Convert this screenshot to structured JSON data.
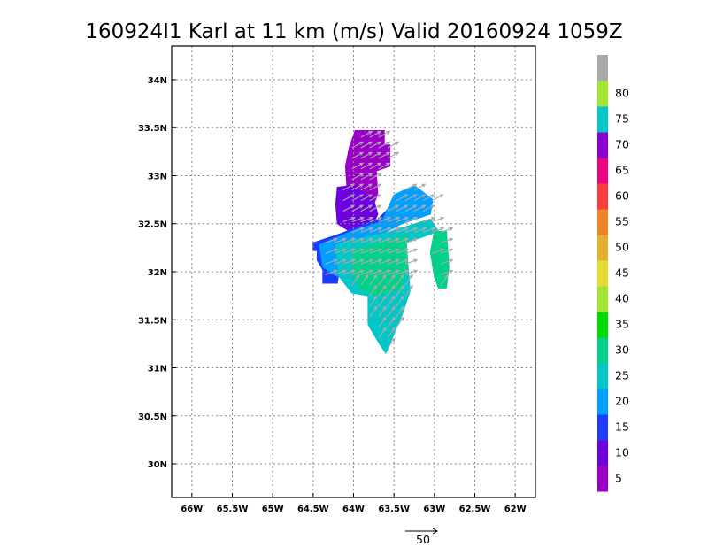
{
  "chart_data": {
    "type": "heatmap",
    "title": "160924I1 Karl at 11 km (m/s) Valid 20160924 1059Z",
    "xlim": [
      -66.25,
      -61.75
    ],
    "ylim": [
      29.65,
      34.35
    ],
    "x_ticks": [
      {
        "value": -66,
        "label": "66W"
      },
      {
        "value": -65.5,
        "label": "65.5W"
      },
      {
        "value": -65,
        "label": "65W"
      },
      {
        "value": -64.5,
        "label": "64.5W"
      },
      {
        "value": -64,
        "label": "64W"
      },
      {
        "value": -63.5,
        "label": "63.5W"
      },
      {
        "value": -63,
        "label": "63W"
      },
      {
        "value": -62.5,
        "label": "62.5W"
      },
      {
        "value": -62,
        "label": "62W"
      }
    ],
    "y_ticks": [
      {
        "value": 30,
        "label": "30N"
      },
      {
        "value": 30.5,
        "label": "30.5N"
      },
      {
        "value": 31,
        "label": "31N"
      },
      {
        "value": 31.5,
        "label": "31.5N"
      },
      {
        "value": 32,
        "label": "32N"
      },
      {
        "value": 32.5,
        "label": "32.5N"
      },
      {
        "value": 33,
        "label": "33N"
      },
      {
        "value": 33.5,
        "label": "33.5N"
      },
      {
        "value": 34,
        "label": "34N"
      }
    ],
    "grid": true,
    "grid_style": "dotted",
    "colorbar": {
      "labels": [
        "5",
        "10",
        "15",
        "20",
        "25",
        "30",
        "35",
        "40",
        "45",
        "50",
        "55",
        "60",
        "65",
        "70",
        "75",
        "80"
      ],
      "colors": [
        "#9a00c8",
        "#6e00e0",
        "#1e3cff",
        "#00a0ff",
        "#00c8c8",
        "#00d28c",
        "#00dc00",
        "#a0e632",
        "#e6dc32",
        "#e6af2d",
        "#f08228",
        "#fa3c3c",
        "#f00082",
        "#8c00d2",
        "#00c8c8",
        "#a0e632",
        "#aaaaaa"
      ]
    },
    "regions": [
      {
        "speed_class": "0-5",
        "color": "#9a00c8",
        "polygon": [
          [
            -63.98,
            33.47
          ],
          [
            -63.62,
            33.47
          ],
          [
            -63.62,
            33.32
          ],
          [
            -63.55,
            33.32
          ],
          [
            -63.55,
            33.1
          ],
          [
            -63.72,
            33.05
          ],
          [
            -63.7,
            32.8
          ],
          [
            -63.78,
            32.65
          ],
          [
            -63.98,
            32.68
          ],
          [
            -64.08,
            32.85
          ],
          [
            -64.1,
            33.1
          ],
          [
            -64.05,
            33.3
          ]
        ]
      },
      {
        "speed_class": "5-10",
        "color": "#6e00e0",
        "polygon": [
          [
            -64.2,
            32.88
          ],
          [
            -64.0,
            32.9
          ],
          [
            -63.75,
            32.75
          ],
          [
            -63.7,
            32.6
          ],
          [
            -63.78,
            32.45
          ],
          [
            -64.05,
            32.42
          ],
          [
            -64.2,
            32.5
          ],
          [
            -64.22,
            32.7
          ]
        ]
      },
      {
        "speed_class": "10-15",
        "color": "#1e3cff",
        "polygon": [
          [
            -64.5,
            32.3
          ],
          [
            -64.15,
            32.4
          ],
          [
            -63.7,
            32.55
          ],
          [
            -63.45,
            32.75
          ],
          [
            -63.3,
            32.72
          ],
          [
            -63.42,
            32.55
          ],
          [
            -63.8,
            32.4
          ],
          [
            -64.15,
            32.18
          ],
          [
            -64.2,
            31.88
          ],
          [
            -64.38,
            31.88
          ],
          [
            -64.38,
            32.02
          ],
          [
            -64.45,
            32.12
          ],
          [
            -64.45,
            32.22
          ],
          [
            -64.5,
            32.22
          ]
        ]
      },
      {
        "speed_class": "15-20",
        "color": "#00a0ff",
        "polygon": [
          [
            -64.42,
            32.28
          ],
          [
            -64.0,
            32.43
          ],
          [
            -63.65,
            32.52
          ],
          [
            -63.5,
            32.8
          ],
          [
            -63.25,
            32.9
          ],
          [
            -63.02,
            32.75
          ],
          [
            -63.05,
            32.6
          ],
          [
            -63.4,
            32.5
          ],
          [
            -63.75,
            32.35
          ],
          [
            -63.95,
            32.12
          ],
          [
            -64.2,
            31.95
          ],
          [
            -64.38,
            32.05
          ]
        ]
      },
      {
        "speed_class": "20-25",
        "color": "#00c8c8",
        "polygon": [
          [
            -64.22,
            32.28
          ],
          [
            -63.9,
            32.35
          ],
          [
            -63.62,
            32.4
          ],
          [
            -63.35,
            32.47
          ],
          [
            -63.05,
            32.55
          ],
          [
            -62.95,
            32.42
          ],
          [
            -63.35,
            32.3
          ],
          [
            -63.3,
            31.8
          ],
          [
            -63.4,
            31.55
          ],
          [
            -63.6,
            31.15
          ],
          [
            -63.68,
            31.25
          ],
          [
            -63.82,
            31.45
          ],
          [
            -63.82,
            31.75
          ],
          [
            -64.02,
            31.78
          ],
          [
            -64.18,
            31.95
          ]
        ]
      },
      {
        "speed_class": "25-30",
        "color": "#00d28c",
        "polygon": [
          [
            -64.0,
            32.23
          ],
          [
            -63.7,
            32.3
          ],
          [
            -63.35,
            32.38
          ],
          [
            -63.33,
            32.05
          ],
          [
            -63.42,
            31.82
          ],
          [
            -63.72,
            31.75
          ],
          [
            -63.92,
            31.82
          ],
          [
            -64.02,
            32.0
          ]
        ]
      },
      {
        "speed_class": "25-30",
        "color": "#00d28c",
        "polygon": [
          [
            -63.0,
            32.42
          ],
          [
            -62.85,
            32.42
          ],
          [
            -62.82,
            32.05
          ],
          [
            -62.85,
            31.83
          ],
          [
            -62.95,
            31.83
          ],
          [
            -63.0,
            31.95
          ],
          [
            -63.05,
            32.2
          ]
        ]
      }
    ],
    "vector_reference": {
      "label": "50",
      "magnitude": 50
    }
  }
}
